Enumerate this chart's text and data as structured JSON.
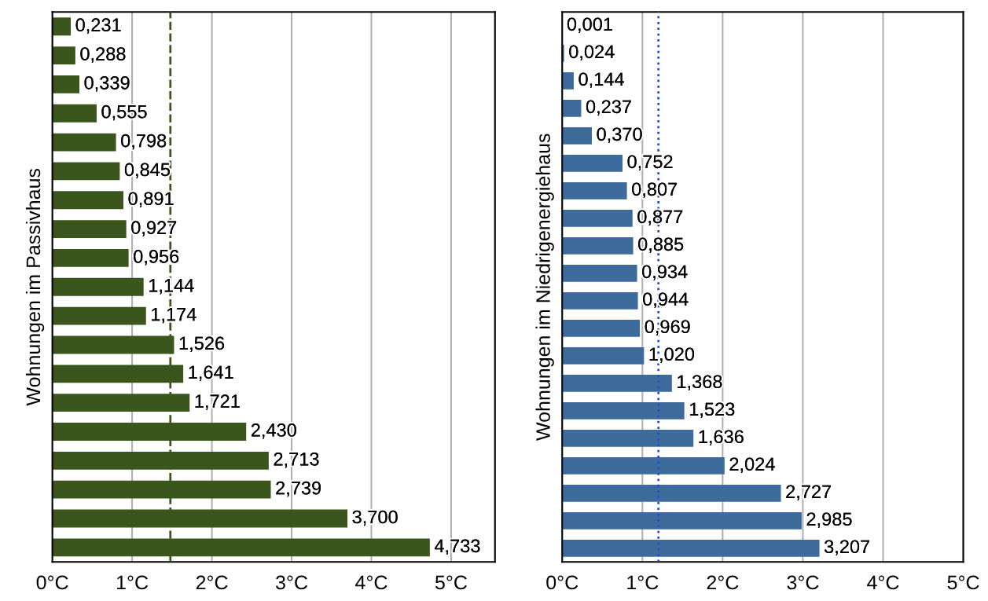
{
  "chart_data": [
    {
      "type": "bar",
      "orientation": "horizontal",
      "ylabel": "Wohnungen im Passivhaus",
      "categories": [
        null,
        null,
        null,
        null,
        null,
        null,
        null,
        null,
        null,
        null,
        null,
        null,
        null,
        null,
        null,
        null,
        null,
        null,
        null
      ],
      "values": [
        0.231,
        0.288,
        0.339,
        0.555,
        0.798,
        0.845,
        0.891,
        0.927,
        0.956,
        1.144,
        1.174,
        1.526,
        1.641,
        1.721,
        2.43,
        2.713,
        2.739,
        3.7,
        4.733
      ],
      "value_labels": [
        "0,231",
        "0,288",
        "0,339",
        "0,555",
        "0,798",
        "0,845",
        "0,891",
        "0,927",
        "0,956",
        "1,144",
        "1,174",
        "1,526",
        "1,641",
        "1,721",
        "2,430",
        "2,713",
        "2,739",
        "3,700",
        "4,733"
      ],
      "color": "#3a561c",
      "xlim": [
        0,
        5.55
      ],
      "xticks": [
        {
          "value": 0,
          "label": "0°C"
        },
        {
          "value": 1,
          "label": "1°C"
        },
        {
          "value": 2,
          "label": "2°C"
        },
        {
          "value": 3,
          "label": "3°C"
        },
        {
          "value": 4,
          "label": "4°C"
        },
        {
          "value": 5,
          "label": "5°C"
        }
      ],
      "grid": "x",
      "ref_lines": [
        {
          "axis": "x",
          "value": 1.48,
          "label": null,
          "color": "#3a561c",
          "line_style": "dashed"
        }
      ]
    },
    {
      "type": "bar",
      "orientation": "horizontal",
      "ylabel": "Wohnungen im Niedrigenergiehaus",
      "categories": [
        null,
        null,
        null,
        null,
        null,
        null,
        null,
        null,
        null,
        null,
        null,
        null,
        null,
        null,
        null,
        null,
        null,
        null,
        null,
        null
      ],
      "values": [
        0.001,
        0.024,
        0.144,
        0.237,
        0.37,
        0.752,
        0.807,
        0.877,
        0.885,
        0.934,
        0.944,
        0.969,
        1.02,
        1.368,
        1.523,
        1.636,
        2.024,
        2.727,
        2.985,
        3.207
      ],
      "value_labels": [
        "0,001",
        "0,024",
        "0,144",
        "0,237",
        "0,370",
        "0,752",
        "0,807",
        "0,877",
        "0,885",
        "0,934",
        "0,944",
        "0,969",
        "1,020",
        "1,368",
        "1,523",
        "1,636",
        "2,024",
        "2,727",
        "2,985",
        "3,207"
      ],
      "color": "#3d6b9c",
      "xlim": [
        0,
        5
      ],
      "xticks": [
        {
          "value": 0,
          "label": "0°C"
        },
        {
          "value": 1,
          "label": "1°C"
        },
        {
          "value": 2,
          "label": "2°C"
        },
        {
          "value": 3,
          "label": "3°C"
        },
        {
          "value": 4,
          "label": "4°C"
        },
        {
          "value": 5,
          "label": "5°C"
        }
      ],
      "grid": "x",
      "ref_lines": [
        {
          "axis": "x",
          "value": 1.2,
          "label": null,
          "color": "#1f4fc8",
          "line_style": "dotted"
        }
      ]
    }
  ]
}
